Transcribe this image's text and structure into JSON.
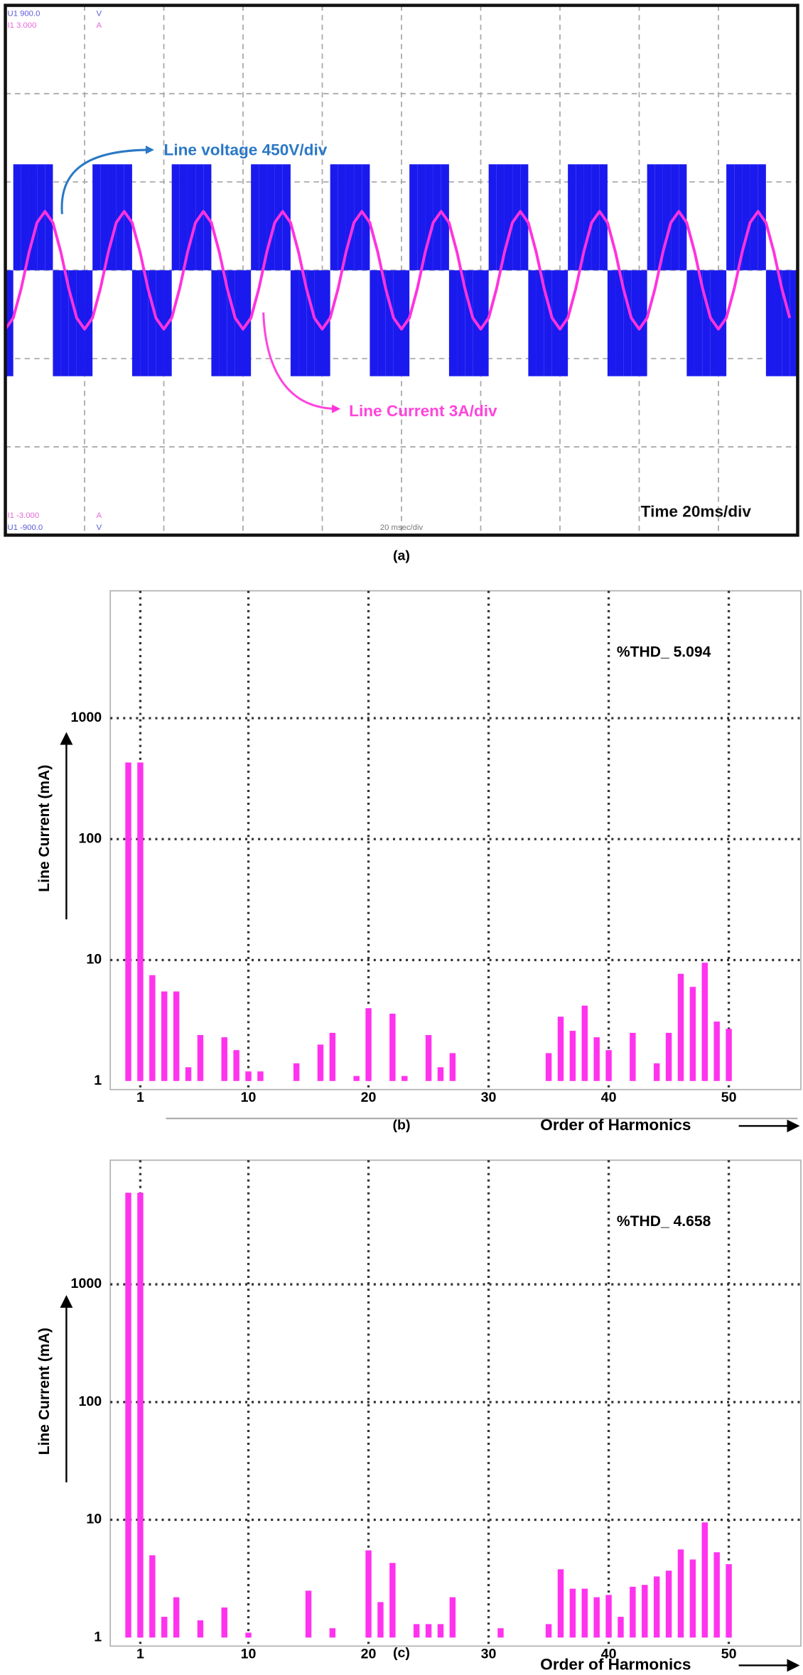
{
  "chart_data": [
    {
      "type": "line",
      "caption": "(a)",
      "xlabel": "Time 20ms/div",
      "scope_labels": [
        "U1 900.0",
        "V",
        "I1 3.000",
        "A",
        "I1 -3.000",
        "A",
        "U1 -900.0",
        "V",
        "20 msec/div"
      ],
      "grid": {
        "x_divisions": 10,
        "y_divisions": 6
      },
      "xlim": [
        0,
        200
      ],
      "ylim": [
        -1350,
        1350
      ],
      "y2lim": [
        -9,
        9
      ],
      "x": [
        0,
        2,
        4,
        6,
        8,
        10,
        12,
        14,
        16,
        18,
        20,
        22,
        24,
        26,
        28,
        30,
        32,
        34,
        36,
        38,
        40,
        42,
        44,
        46,
        48,
        50,
        52,
        54,
        56,
        58,
        60,
        62,
        64,
        66,
        68,
        70,
        72,
        74,
        76,
        78,
        80,
        82,
        84,
        86,
        88,
        90,
        92,
        94,
        96,
        98,
        100,
        102,
        104,
        106,
        108,
        110,
        112,
        114,
        116,
        118,
        120,
        122,
        124,
        126,
        128,
        130,
        132,
        134,
        136,
        138,
        140,
        142,
        144,
        146,
        148,
        150,
        152,
        154,
        156,
        158,
        160,
        162,
        164,
        166,
        168,
        170,
        172,
        174,
        176,
        178,
        180,
        182,
        184,
        186,
        188,
        190,
        192,
        194,
        196,
        198
      ],
      "series": [
        {
          "name": "Line voltage 450V/div",
          "color": "#1a1aee",
          "label_color": "#2a78c6",
          "style": "bar",
          "axis": "y",
          "values": [
            -540,
            540,
            540,
            540,
            540,
            540,
            -540,
            -540,
            -540,
            -540,
            -540,
            540,
            540,
            540,
            540,
            540,
            -540,
            -540,
            -540,
            -540,
            -540,
            540,
            540,
            540,
            540,
            540,
            -540,
            -540,
            -540,
            -540,
            -540,
            540,
            540,
            540,
            540,
            540,
            -540,
            -540,
            -540,
            -540,
            -540,
            540,
            540,
            540,
            540,
            540,
            -540,
            -540,
            -540,
            -540,
            -540,
            540,
            540,
            540,
            540,
            540,
            -540,
            -540,
            -540,
            -540,
            -540,
            540,
            540,
            540,
            540,
            540,
            -540,
            -540,
            -540,
            -540,
            -540,
            540,
            540,
            540,
            540,
            540,
            -540,
            -540,
            -540,
            -540,
            -540,
            540,
            540,
            540,
            540,
            540,
            -540,
            -540,
            -540,
            -540,
            -540,
            540,
            540,
            540,
            540,
            540,
            -540,
            -540,
            -540,
            -540
          ]
        },
        {
          "name": "Line Current 3A/div",
          "color": "#ff33dd",
          "label_color": "#ff44dd",
          "style": "line",
          "axis": "y2",
          "values": [
            -2,
            -1.62,
            -0.62,
            0.62,
            1.62,
            2,
            1.62,
            0.62,
            -0.62,
            -1.62,
            -2,
            -1.62,
            -0.62,
            0.62,
            1.62,
            2,
            1.62,
            0.62,
            -0.62,
            -1.62,
            -2,
            -1.62,
            -0.62,
            0.62,
            1.62,
            2,
            1.62,
            0.62,
            -0.62,
            -1.62,
            -2,
            -1.62,
            -0.62,
            0.62,
            1.62,
            2,
            1.62,
            0.62,
            -0.62,
            -1.62,
            -2,
            -1.62,
            -0.62,
            0.62,
            1.62,
            2,
            1.62,
            0.62,
            -0.62,
            -1.62,
            -2,
            -1.62,
            -0.62,
            0.62,
            1.62,
            2,
            1.62,
            0.62,
            -0.62,
            -1.62,
            -2,
            -1.62,
            -0.62,
            0.62,
            1.62,
            2,
            1.62,
            0.62,
            -0.62,
            -1.62,
            -2,
            -1.62,
            -0.62,
            0.62,
            1.62,
            2,
            1.62,
            0.62,
            -0.62,
            -1.62,
            -2,
            -1.62,
            -0.62,
            0.62,
            1.62,
            2,
            1.62,
            0.62,
            -0.62,
            -1.62,
            -2,
            -1.62,
            -0.62,
            0.62,
            1.62,
            2,
            1.62,
            0.62,
            -0.62,
            -1.62
          ]
        }
      ]
    },
    {
      "type": "bar",
      "caption": "(b)",
      "annotation": "%THD_ 5.094",
      "ylabel": "Line Current (mA)",
      "xlabel": "Order of Harmonics",
      "log_y": true,
      "grid": true,
      "color": "#ff33ee",
      "xlim": [
        -1.5,
        56
      ],
      "xticks": [
        1,
        10,
        20,
        30,
        40,
        50
      ],
      "ylim": [
        1,
        10000
      ],
      "yticks": [
        1,
        10,
        100,
        1000
      ],
      "x": [
        0,
        1,
        2,
        3,
        4,
        5,
        6,
        8,
        9,
        10,
        11,
        14,
        16,
        17,
        19,
        20,
        22,
        23,
        25,
        26,
        27,
        35,
        36,
        37,
        38,
        39,
        40,
        42,
        44,
        45,
        46,
        47,
        48,
        49,
        50
      ],
      "values": [
        430,
        430,
        7.5,
        5.5,
        5.5,
        1.3,
        2.4,
        2.3,
        1.8,
        1.2,
        1.2,
        1.4,
        2,
        2.5,
        1.1,
        4,
        3.6,
        1.1,
        2.4,
        1.3,
        1.7,
        1.7,
        3.4,
        2.6,
        4.2,
        2.3,
        1.8,
        2.5,
        1.4,
        2.5,
        7.7,
        6,
        9.5,
        3.1,
        2.7
      ]
    },
    {
      "type": "bar",
      "caption": "(c)",
      "annotation": "%THD_ 4.658",
      "ylabel": "Line Current (mA)",
      "xlabel": "Order of Harmonics",
      "log_y": true,
      "grid": true,
      "color": "#ff33ee",
      "xlim": [
        -1.5,
        56
      ],
      "xticks": [
        1,
        10,
        20,
        30,
        40,
        50
      ],
      "ylim": [
        1,
        10000
      ],
      "yticks": [
        1,
        10,
        100,
        1000
      ],
      "x": [
        0,
        1,
        2,
        3,
        4,
        6,
        8,
        10,
        15,
        17,
        20,
        21,
        22,
        24,
        25,
        26,
        27,
        31,
        35,
        36,
        37,
        38,
        39,
        40,
        41,
        42,
        43,
        44,
        45,
        46,
        47,
        48,
        49,
        50
      ],
      "values": [
        6000,
        6000,
        5,
        1.5,
        2.2,
        1.4,
        1.8,
        1.1,
        2.5,
        1.2,
        5.5,
        2,
        4.3,
        1.3,
        1.3,
        1.3,
        2.2,
        1.2,
        1.3,
        3.8,
        2.6,
        2.6,
        2.2,
        2.3,
        1.5,
        2.7,
        2.8,
        3.3,
        3.7,
        5.6,
        4.6,
        9.5,
        5.3,
        4.2
      ]
    }
  ]
}
